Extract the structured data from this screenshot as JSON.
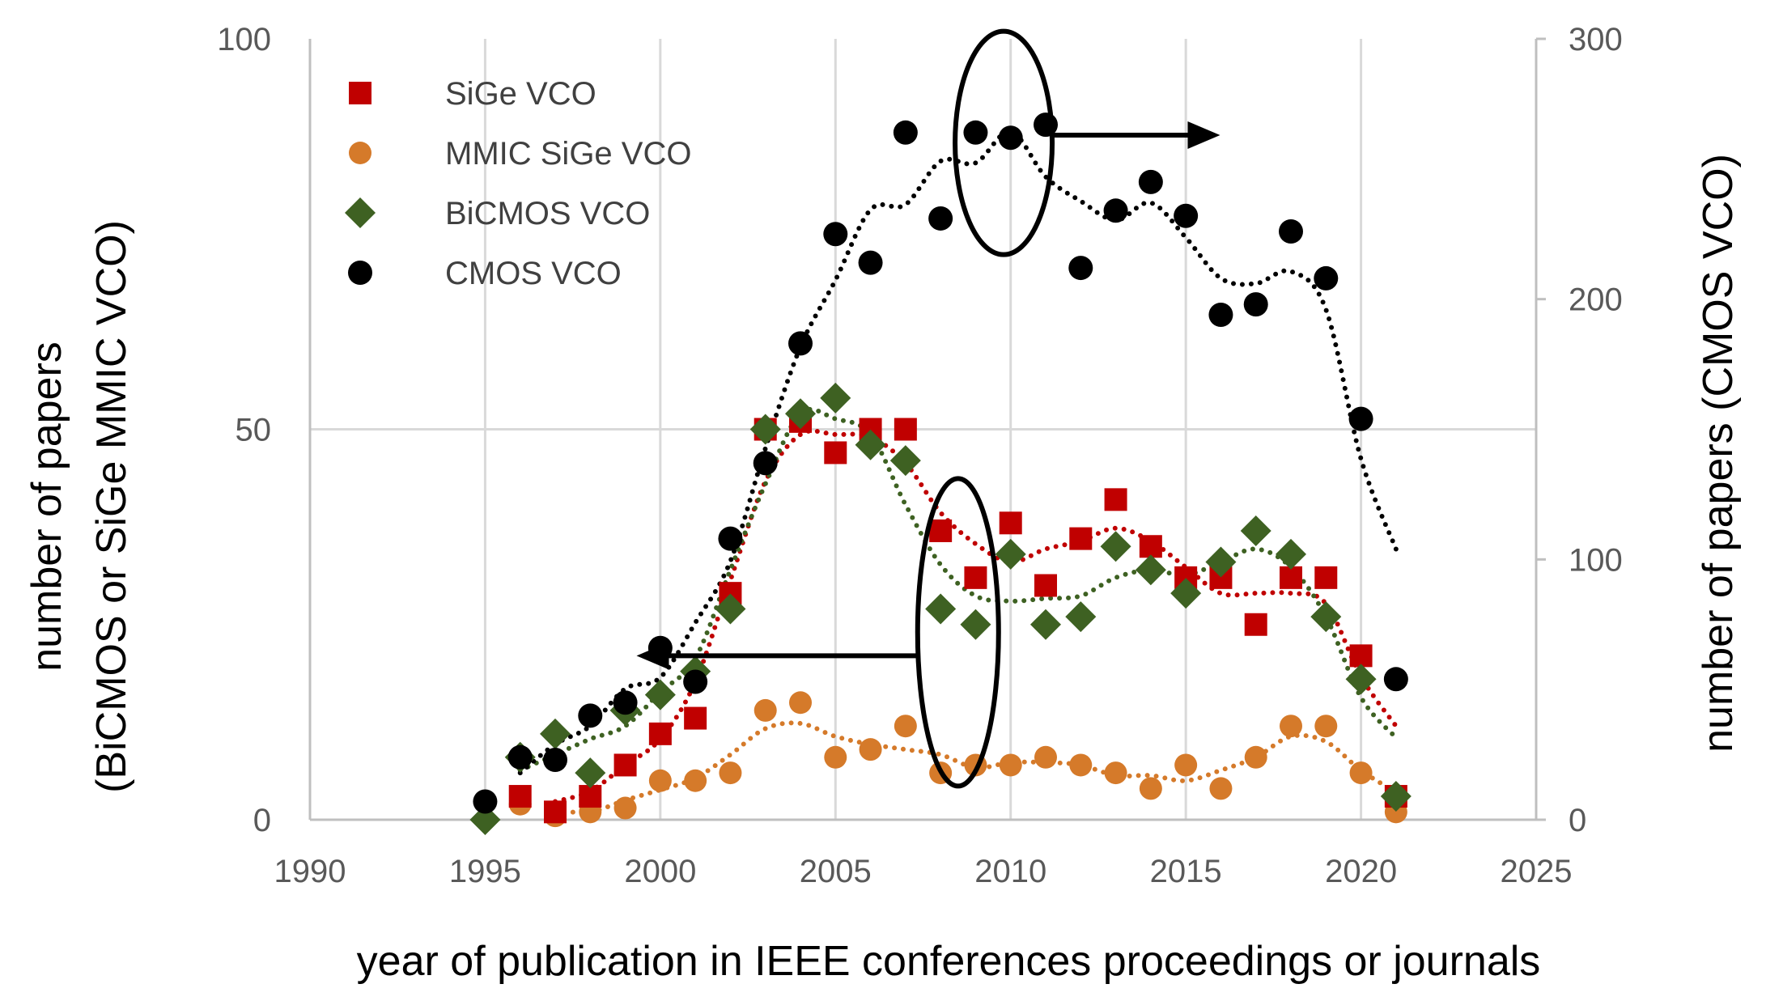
{
  "chart_data": {
    "type": "scatter",
    "title": "",
    "xlabel": "year of publication in IEEE conferences proceedings  or journals",
    "ylabel_left_line1": "number of papers",
    "ylabel_left_line2": "(BiCMOS or SiGe MMIC VCO)",
    "ylabel_right": "number of papers (CMOS VCO)",
    "xlim": [
      1990,
      2025
    ],
    "ylim_left": [
      0,
      100
    ],
    "ylim_right": [
      0,
      300
    ],
    "x_ticks": [
      "1990",
      "1995",
      "2000",
      "2005",
      "2010",
      "2015",
      "2020",
      "2025"
    ],
    "y_left_ticks": [
      "0",
      "50",
      "100"
    ],
    "y_right_ticks": [
      "0",
      "100",
      "200",
      "300"
    ],
    "grid": true,
    "legend_position": "top-left",
    "series": [
      {
        "name": "SiGe VCO",
        "axis": "left",
        "marker": "square",
        "color": "#c00000",
        "x": [
          1996,
          1997,
          1998,
          1999,
          2000,
          2001,
          2002,
          2003,
          2004,
          2005,
          2006,
          2007,
          2008,
          2009,
          2010,
          2011,
          2012,
          2013,
          2014,
          2015,
          2016,
          2017,
          2018,
          2019,
          2020,
          2021
        ],
        "y": [
          3,
          1,
          3,
          7,
          11,
          13,
          29,
          50,
          51,
          47,
          50,
          50,
          37,
          31,
          38,
          30,
          36,
          41,
          35,
          31,
          31,
          25,
          31,
          31,
          21,
          3
        ]
      },
      {
        "name": "MMIC SiGe VCO",
        "axis": "left",
        "marker": "circle",
        "color": "#d57a2a",
        "x": [
          1996,
          1997,
          1998,
          1999,
          2000,
          2001,
          2002,
          2003,
          2004,
          2005,
          2006,
          2007,
          2008,
          2009,
          2010,
          2011,
          2012,
          2013,
          2014,
          2015,
          2016,
          2017,
          2018,
          2019,
          2020,
          2021
        ],
        "y": [
          2,
          0.5,
          1,
          1.5,
          5,
          5,
          6,
          14,
          15,
          8,
          9,
          12,
          6,
          7,
          7,
          8,
          7,
          6,
          4,
          7,
          4,
          8,
          12,
          12,
          6,
          1
        ]
      },
      {
        "name": "BiCMOS VCO",
        "axis": "left",
        "marker": "diamond",
        "color": "#3e6122",
        "x": [
          1995,
          1996,
          1997,
          1998,
          1999,
          2000,
          2001,
          2002,
          2003,
          2004,
          2005,
          2006,
          2007,
          2008,
          2009,
          2010,
          2011,
          2012,
          2013,
          2014,
          2015,
          2016,
          2017,
          2018,
          2019,
          2020,
          2021
        ],
        "y": [
          0,
          8,
          11,
          6,
          14,
          16,
          19,
          27,
          50,
          52,
          54,
          48,
          46,
          27,
          25,
          34,
          25,
          26,
          35,
          32,
          29,
          33,
          37,
          34,
          26,
          18,
          3
        ]
      },
      {
        "name": "CMOS VCO",
        "axis": "right",
        "marker": "circle",
        "color": "#000000",
        "x": [
          1995,
          1996,
          1997,
          1998,
          1999,
          2000,
          2001,
          2002,
          2003,
          2004,
          2005,
          2006,
          2007,
          2008,
          2009,
          2010,
          2011,
          2012,
          2013,
          2014,
          2015,
          2016,
          2017,
          2018,
          2019,
          2020,
          2021
        ],
        "y": [
          7,
          24,
          23,
          40,
          45,
          66,
          53,
          108,
          137,
          183,
          225,
          214,
          264,
          231,
          264,
          262,
          267,
          212,
          234,
          245,
          232,
          194,
          198,
          226,
          208,
          154,
          54
        ]
      }
    ],
    "annotations": [
      {
        "kind": "ellipse-arrow",
        "ellipse_center": [
          2009.8,
          260
        ],
        "ellipse_axis": "right",
        "arrow_direction": "right",
        "meaning": "CMOS VCO data uses right axis"
      },
      {
        "kind": "ellipse-arrow",
        "ellipse_center": [
          2008.5,
          24
        ],
        "ellipse_axis": "left",
        "arrow_direction": "left",
        "meaning": "BiCMOS / SiGe data uses left axis"
      }
    ]
  }
}
